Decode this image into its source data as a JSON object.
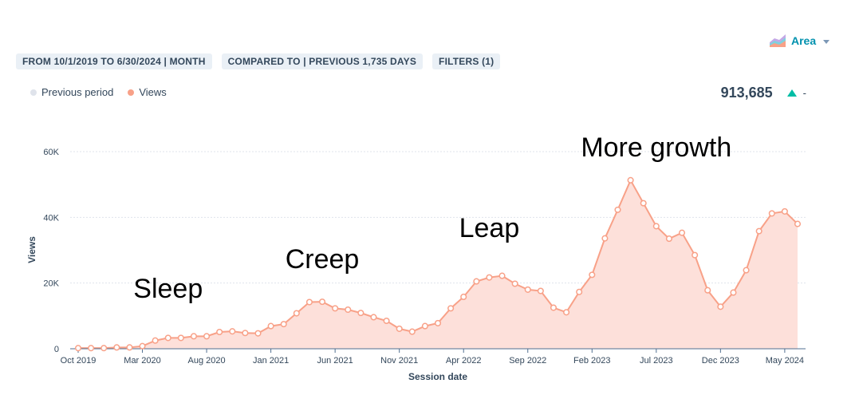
{
  "chart_type_selector": {
    "label": "Area",
    "icon": "area-chart-icon"
  },
  "filters": [
    "FROM 10/1/2019 TO 6/30/2024 | MONTH",
    "COMPARED TO | PREVIOUS 1,735 DAYS",
    "FILTERS (1)"
  ],
  "legend": {
    "items": [
      {
        "label": "Previous period",
        "color": "#dfe3eb"
      },
      {
        "label": "Views",
        "color": "#f8a188"
      }
    ]
  },
  "total": {
    "value": "913,685",
    "change": "-",
    "trend": "up",
    "trend_color": "#00bda5"
  },
  "chart_data": {
    "type": "area",
    "xlabel": "Session date",
    "ylabel": "Views",
    "ylim": [
      0,
      60000
    ],
    "yticks": [
      "0",
      "20K",
      "40K",
      "60K"
    ],
    "ytick_values": [
      0,
      20000,
      40000,
      60000
    ],
    "grid": true,
    "xtick_labels": [
      "Oct 2019",
      "Mar 2020",
      "Aug 2020",
      "Jan 2021",
      "Jun 2021",
      "Nov 2021",
      "Apr 2022",
      "Sep 2022",
      "Feb 2023",
      "Jul 2023",
      "Dec 2023",
      "May 2024"
    ],
    "xtick_indices": [
      0,
      5,
      10,
      15,
      20,
      25,
      30,
      35,
      40,
      45,
      50,
      55
    ],
    "series": [
      {
        "name": "Views",
        "color": "#f8a188",
        "fill": "#fde0da",
        "x": [
          "Oct 2019",
          "Nov 2019",
          "Dec 2019",
          "Jan 2020",
          "Feb 2020",
          "Mar 2020",
          "Apr 2020",
          "May 2020",
          "Jun 2020",
          "Jul 2020",
          "Aug 2020",
          "Sep 2020",
          "Oct 2020",
          "Nov 2020",
          "Dec 2020",
          "Jan 2021",
          "Feb 2021",
          "Mar 2021",
          "Apr 2021",
          "May 2021",
          "Jun 2021",
          "Jul 2021",
          "Aug 2021",
          "Sep 2021",
          "Oct 2021",
          "Nov 2021",
          "Dec 2021",
          "Jan 2022",
          "Feb 2022",
          "Mar 2022",
          "Apr 2022",
          "May 2022",
          "Jun 2022",
          "Jul 2022",
          "Aug 2022",
          "Sep 2022",
          "Oct 2022",
          "Nov 2022",
          "Dec 2022",
          "Jan 2023",
          "Feb 2023",
          "Mar 2023",
          "Apr 2023",
          "May 2023",
          "Jun 2023",
          "Jul 2023",
          "Aug 2023",
          "Sep 2023",
          "Oct 2023",
          "Nov 2023",
          "Dec 2023",
          "Jan 2024",
          "Feb 2024",
          "Mar 2024",
          "Apr 2024",
          "May 2024",
          "Jun 2024"
        ],
        "values": [
          200,
          200,
          200,
          400,
          400,
          800,
          2500,
          3300,
          3300,
          3800,
          3800,
          5100,
          5300,
          4800,
          4700,
          6900,
          7500,
          10800,
          14200,
          14300,
          12300,
          11900,
          10900,
          9600,
          8500,
          6100,
          5200,
          6900,
          7800,
          12300,
          15800,
          20500,
          21700,
          22200,
          19800,
          18000,
          17600,
          12500,
          11100,
          17300,
          22500,
          33600,
          42300,
          51300,
          44300,
          37300,
          33500,
          35300,
          28500,
          17800,
          12800,
          17100,
          23900,
          35800,
          41200,
          41800,
          38000
        ]
      }
    ],
    "annotations": [
      {
        "text": "Sleep",
        "at_index": 7,
        "value": 15500
      },
      {
        "text": "Creep",
        "at_index": 19,
        "value": 24500
      },
      {
        "text": "Leap",
        "at_index": 32,
        "value": 34000
      },
      {
        "text": "More growth",
        "at_index": 45,
        "value": 58500
      }
    ]
  }
}
